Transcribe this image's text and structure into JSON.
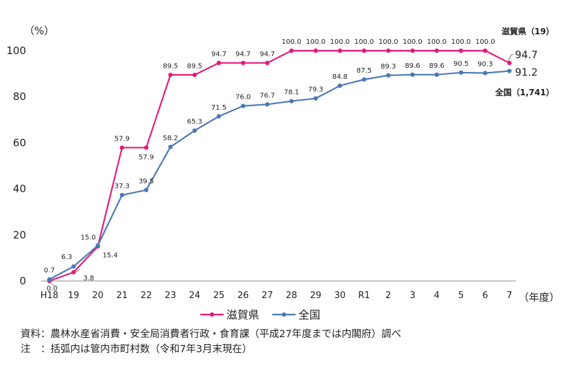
{
  "chart_data": {
    "type": "line",
    "ylabel": "（%）",
    "xlabel": "（年度）",
    "ylim": [
      0,
      100
    ],
    "yticks": [
      "0",
      "20",
      "40",
      "60",
      "80",
      "100"
    ],
    "categories": [
      "H18",
      "19",
      "20",
      "21",
      "22",
      "23",
      "24",
      "25",
      "26",
      "27",
      "28",
      "29",
      "30",
      "R1",
      "2",
      "3",
      "4",
      "5",
      "6",
      "7"
    ],
    "series": [
      {
        "name": "滋賀県",
        "end_label": "滋賀県（19）",
        "color": "#e6197a",
        "values": [
          0.0,
          3.8,
          15.0,
          57.9,
          57.9,
          89.5,
          89.5,
          94.7,
          94.7,
          94.7,
          100.0,
          100.0,
          100.0,
          100.0,
          100.0,
          100.0,
          100.0,
          100.0,
          100.0,
          94.7
        ],
        "labels": [
          "0.0",
          "3.8",
          "15.0",
          "57.9",
          "57.9",
          "89.5",
          "89.5",
          "94.7",
          "94.7",
          "94.7",
          "100.0",
          "100.0",
          "100.0",
          "100.0",
          "100.0",
          "100.0",
          "100.0",
          "100.0",
          "100.0",
          "94.7"
        ]
      },
      {
        "name": "全国",
        "end_label": "全国（1,741）",
        "color": "#4a7ab5",
        "values": [
          0.7,
          6.3,
          15.4,
          37.3,
          39.5,
          58.2,
          65.3,
          71.5,
          76.0,
          76.7,
          78.1,
          79.3,
          84.8,
          87.5,
          89.3,
          89.6,
          89.6,
          90.5,
          90.3,
          91.2
        ],
        "labels": [
          "0.7",
          "6.3",
          "15.4",
          "37.3",
          "39.5",
          "58.2",
          "65.3",
          "71.5",
          "76.0",
          "76.7",
          "78.1",
          "79.3",
          "84.8",
          "87.5",
          "89.3",
          "89.6",
          "89.6",
          "90.5",
          "90.3",
          "91.2"
        ]
      }
    ],
    "legend": [
      "滋賀県",
      "全国"
    ],
    "legend_position": "bottom-left"
  },
  "notes": {
    "source": "資料：農林水産省消費・安全局消費者行政・食育課（平成27年度までは内閣府）調べ",
    "remark": "注　：括弧内は管内市町村数（令和7年3月末現在）"
  }
}
